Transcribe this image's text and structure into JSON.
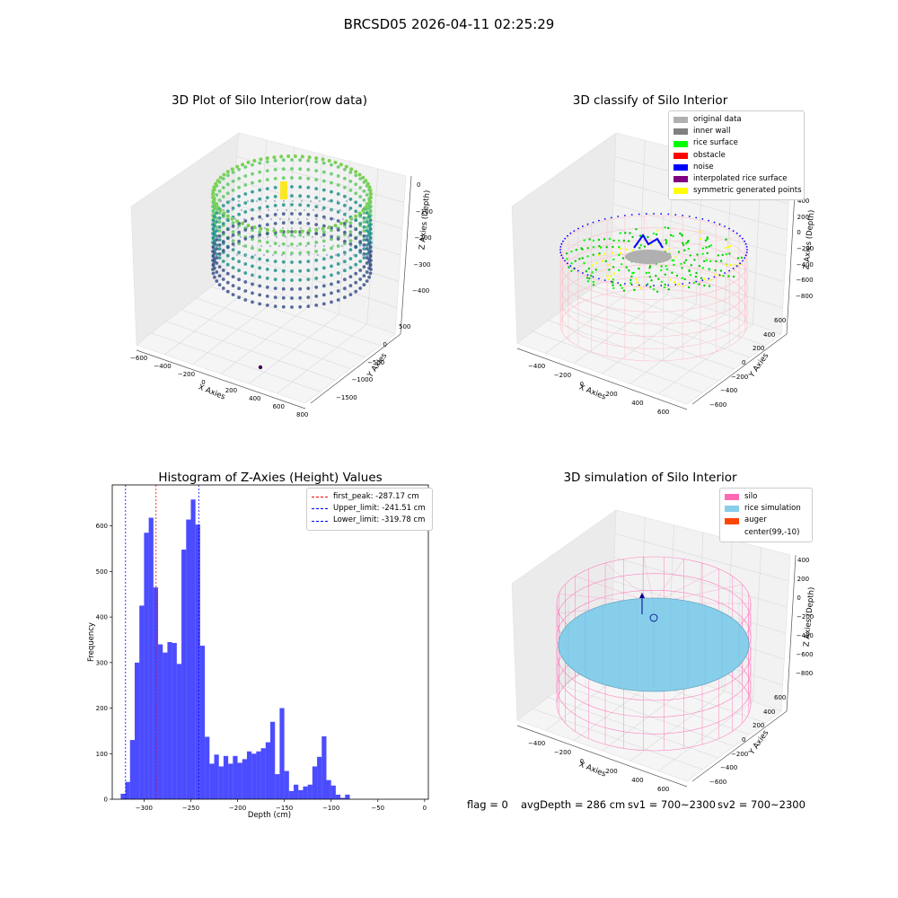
{
  "figure": {
    "suptitle": "BRCSD05 2026-04-11 02:25:29"
  },
  "panel1": {
    "title": "3D Plot of Silo Interior(row data)",
    "xlabel": "X Axies",
    "ylabel": "Y Axies",
    "zlabel": "Z Axies (Depth)",
    "xticks": [
      "−600",
      "−400",
      "−200",
      "0",
      "200",
      "400",
      "600",
      "800"
    ],
    "yticks": [
      "500",
      "0",
      "−500",
      "−1000",
      "−1500"
    ],
    "zticks": [
      "0",
      "−100",
      "−200",
      "−300",
      "−400"
    ]
  },
  "panel2": {
    "title": "3D classify of Silo Interior",
    "legend": [
      {
        "label": "original data",
        "color": "#b0b0b0"
      },
      {
        "label": "inner wall",
        "color": "#808080"
      },
      {
        "label": "rice surface",
        "color": "#00ff00"
      },
      {
        "label": "obstacle",
        "color": "#ff0000"
      },
      {
        "label": "noise",
        "color": "#0000ff"
      },
      {
        "label": "interpolated rice surface",
        "color": "#800080"
      },
      {
        "label": "symmetric generated points",
        "color": "#ffff00"
      }
    ],
    "xlabel": "X Axies",
    "ylabel": "Y Axies",
    "zlabel": "Z Axies (Depth)",
    "xticks": [
      "−400",
      "−200",
      "0",
      "200",
      "400",
      "600"
    ],
    "yticks": [
      "600",
      "400",
      "200",
      "0",
      "−200",
      "−400",
      "−600"
    ],
    "zticks": [
      "400",
      "200",
      "0",
      "−200",
      "−400",
      "−600",
      "−800"
    ]
  },
  "panel4": {
    "title": "3D simulation of Silo Interior",
    "legend": [
      {
        "label": "silo",
        "color": "#ff69b4"
      },
      {
        "label": "rice simulation",
        "color": "#87ceeb"
      },
      {
        "label": "auger",
        "color": "#ff4500"
      },
      {
        "label": "center(99,-10)",
        "color": ""
      }
    ],
    "xlabel": "X Axies",
    "ylabel": "Y Axies",
    "zlabel": "Z Axies (Depth)",
    "xticks": [
      "−400",
      "−200",
      "0",
      "200",
      "400",
      "600"
    ],
    "yticks": [
      "600",
      "400",
      "200",
      "0",
      "−200",
      "−400",
      "−600"
    ],
    "zticks": [
      "400",
      "200",
      "0",
      "−200",
      "−400",
      "−600",
      "−800"
    ]
  },
  "footer": {
    "flag": "flag = 0",
    "avg": "avgDepth = 286 cm",
    "sv1": "sv1 = 700~2300",
    "sv2": "sv2 = 700~2300"
  },
  "chart_data": [
    {
      "type": "bar",
      "title": "Histogram of Z-Axies (Height) Values",
      "xlabel": "Depth (cm)",
      "ylabel": "Frequency",
      "xlim": [
        -334,
        4
      ],
      "ylim": [
        0,
        690
      ],
      "xticks": [
        -300,
        -250,
        -200,
        -150,
        -100,
        -50,
        0
      ],
      "xtick_labels": [
        "−300",
        "−250",
        "−200",
        "−150",
        "−100",
        "−50",
        "0"
      ],
      "yticks": [
        0,
        100,
        200,
        300,
        400,
        500,
        600
      ],
      "bin_start": -325.0,
      "bin_width": 5.0,
      "values": [
        12,
        38,
        130,
        300,
        425,
        585,
        618,
        465,
        340,
        322,
        345,
        343,
        297,
        548,
        614,
        658,
        603,
        337,
        137,
        78,
        98,
        72,
        95,
        78,
        95,
        80,
        88,
        105,
        100,
        105,
        112,
        125,
        170,
        55,
        200,
        62,
        18,
        32,
        20,
        28,
        32,
        72,
        93,
        138,
        42,
        30,
        10,
        3,
        10
      ],
      "color": "#0000ff",
      "vlines": [
        {
          "name": "first_peak: -287.17 cm",
          "x": -287.17,
          "color": "#ff0000"
        },
        {
          "name": "Upper_limit: -241.51 cm",
          "x": -241.51,
          "color": "#0000ff"
        },
        {
          "name": "Lower_limit: -319.78 cm",
          "x": -319.78,
          "color": "#0000ff"
        }
      ]
    }
  ]
}
